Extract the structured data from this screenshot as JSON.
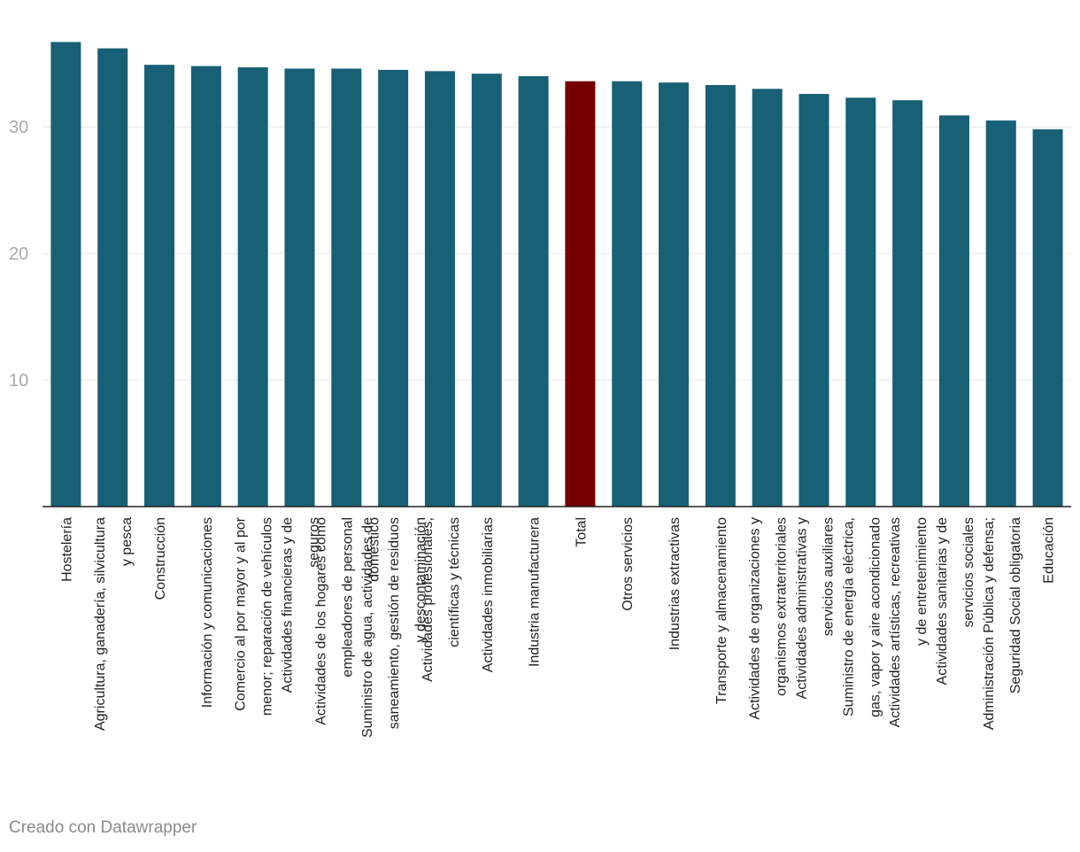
{
  "chart_data": {
    "type": "bar",
    "categories": [
      [
        "Hostelería"
      ],
      [
        "Agricultura, ganadería, silvicultura",
        "y pesca"
      ],
      [
        "Construcción"
      ],
      [
        "Información y comunicaciones"
      ],
      [
        "Comercio al por mayor y al por",
        "menor; reparación de vehículos"
      ],
      [
        "Actividades financieras y de",
        "seguros"
      ],
      [
        "Actividades de los hogares como",
        "empleadores de personal",
        "doméstico"
      ],
      [
        "Suministro de agua, actividades de",
        "saneamiento, gestión de residuos",
        "y descontaminación"
      ],
      [
        "Actividades profesionales,",
        "científicas y técnicas"
      ],
      [
        "Actividades inmobiliarias"
      ],
      [
        "Industria manufacturera"
      ],
      [
        "Total"
      ],
      [
        "Otros servicios"
      ],
      [
        "Industrias extractivas"
      ],
      [
        "Transporte y almacenamiento"
      ],
      [
        "Actividades de organizaciones y",
        "organismos extraterritoriales"
      ],
      [
        "Actividades administrativas y",
        "servicios auxiliares"
      ],
      [
        "Suministro de energía eléctrica,",
        "gas, vapor y aire acondicionado"
      ],
      [
        "Actividades artísticas, recreativas",
        "y de entretenimiento"
      ],
      [
        "Actividades sanitarias y de",
        "servicios sociales"
      ],
      [
        "Administración Pública y defensa;",
        "Seguridad Social obligatoria"
      ],
      [
        "Educación"
      ]
    ],
    "values": [
      36.7,
      36.2,
      34.9,
      34.8,
      34.7,
      34.6,
      34.6,
      34.5,
      34.4,
      34.2,
      34.0,
      33.6,
      33.6,
      33.5,
      33.3,
      33.0,
      32.6,
      32.3,
      32.1,
      30.9,
      30.5,
      29.8
    ],
    "highlight_index": 11,
    "yticks": [
      10,
      20,
      30
    ],
    "ylim": [
      0,
      37.5
    ],
    "grid": true,
    "colors": {
      "bar": "#176076",
      "highlight": "#760000"
    }
  },
  "footer": {
    "credit": "Creado con Datawrapper"
  }
}
